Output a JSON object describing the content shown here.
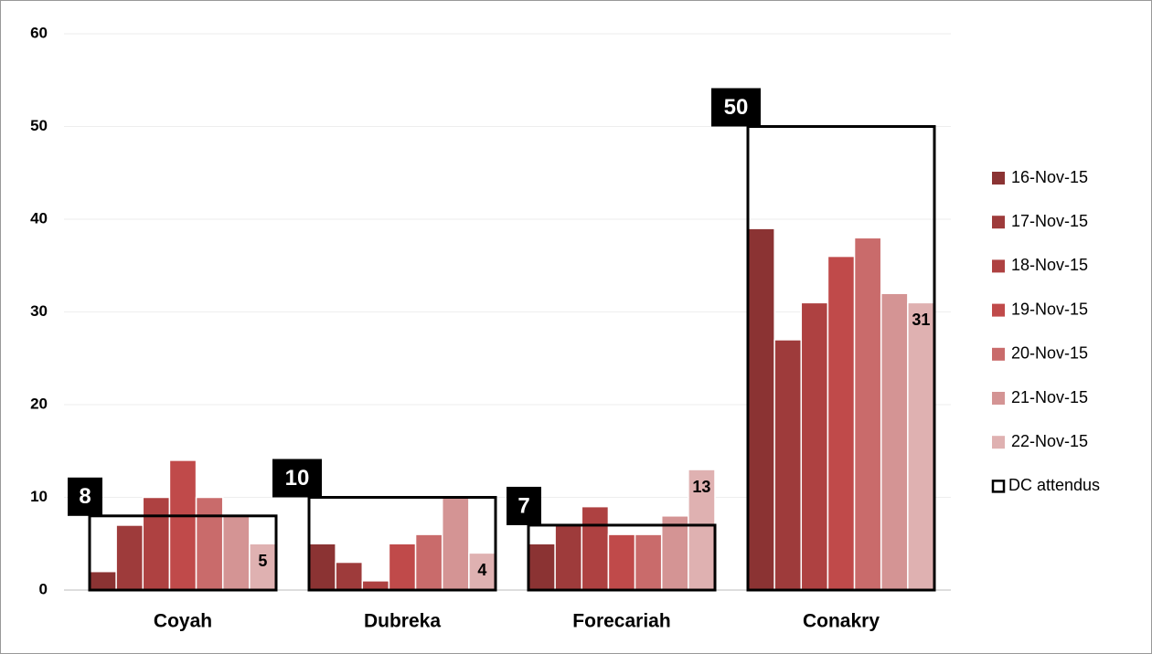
{
  "chart_data": {
    "type": "bar",
    "categories": [
      "Coyah",
      "Dubreka",
      "Forecariah",
      "Conakry"
    ],
    "series": [
      {
        "name": "16-Nov-15",
        "color": "#8b3333",
        "values": [
          2,
          5,
          5,
          39
        ]
      },
      {
        "name": "17-Nov-15",
        "color": "#9e3b3b",
        "values": [
          7,
          3,
          7,
          27
        ]
      },
      {
        "name": "18-Nov-15",
        "color": "#ae4141",
        "values": [
          10,
          1,
          9,
          31
        ]
      },
      {
        "name": "19-Nov-15",
        "color": "#c04a4a",
        "values": [
          14,
          5,
          6,
          36
        ]
      },
      {
        "name": "20-Nov-15",
        "color": "#c96b6b",
        "values": [
          10,
          6,
          6,
          38
        ]
      },
      {
        "name": "21-Nov-15",
        "color": "#d49494",
        "values": [
          8,
          10,
          8,
          32
        ]
      },
      {
        "name": "22-Nov-15",
        "color": "#dfb1b1",
        "values": [
          5,
          4,
          13,
          31
        ],
        "show_labels": true
      },
      {
        "name": "DC attendus",
        "color": "#000000",
        "values": [
          8,
          10,
          7,
          50
        ],
        "style": "outline",
        "show_labels": true
      }
    ],
    "ylim": [
      0,
      60
    ],
    "yticks": [
      0,
      10,
      20,
      30,
      40,
      50,
      60
    ],
    "grid": true,
    "legend": "right"
  }
}
